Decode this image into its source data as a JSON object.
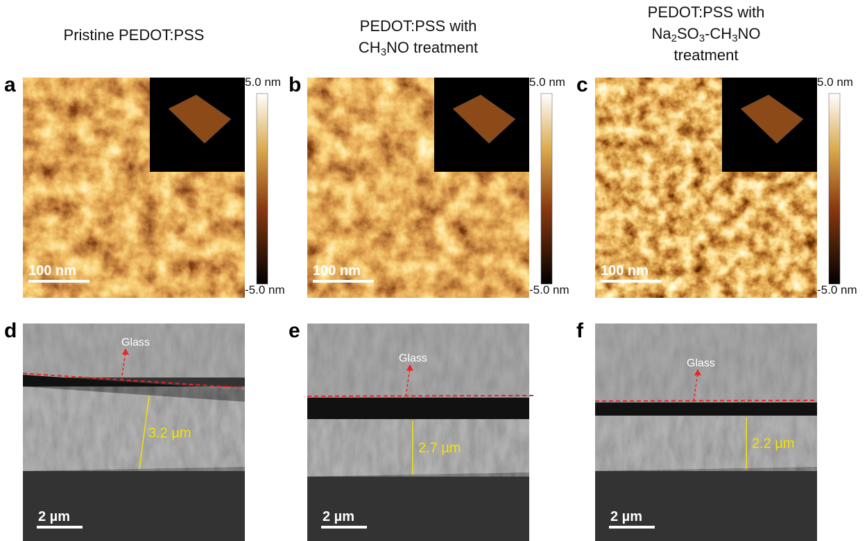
{
  "afm_panels": [
    {
      "label": "a",
      "title": [
        [
          "Pristine PEDOT:PSS"
        ]
      ],
      "colorbar_max": "5.0 nm",
      "colorbar_min": "-5.0 nm",
      "scale_bar": "100 nm"
    },
    {
      "label": "b",
      "title": [
        [
          "PEDOT:PSS with"
        ],
        [
          "CH",
          "3",
          "NO treatment"
        ]
      ],
      "colorbar_max": "5.0 nm",
      "colorbar_min": "-5.0 nm",
      "scale_bar": "100 nm"
    },
    {
      "label": "c",
      "title": [
        [
          "PEDOT:PSS with"
        ],
        [
          "Na",
          "2",
          "SO",
          "3",
          "-CH",
          "3",
          "NO"
        ],
        [
          "treatment"
        ]
      ],
      "colorbar_max": "5.0 nm",
      "colorbar_min": "-5.0 nm",
      "scale_bar": "100 nm"
    }
  ],
  "sem_panels": [
    {
      "label": "d",
      "annotation": "Glass",
      "thickness": "3.2 µm",
      "scale_bar": "2 µm"
    },
    {
      "label": "e",
      "annotation": "Glass",
      "thickness": "2.7 µm",
      "scale_bar": "2 µm"
    },
    {
      "label": "f",
      "annotation": "Glass",
      "thickness": "2.2 µm",
      "scale_bar": "2 µm"
    }
  ]
}
